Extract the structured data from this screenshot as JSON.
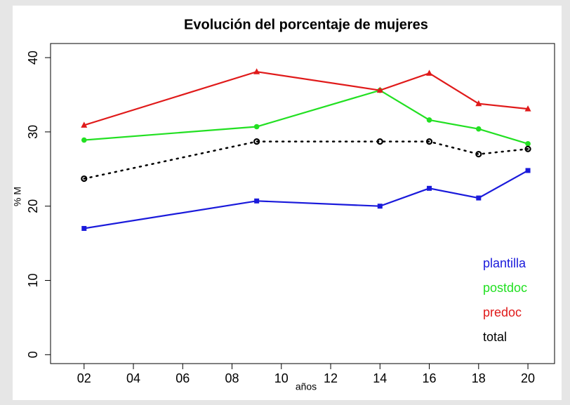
{
  "chart_data": {
    "type": "line",
    "title": "Evolución del porcentaje de mujeres",
    "x_label": "años",
    "y_label": "% M",
    "x": [
      2,
      9,
      14,
      16,
      18,
      20
    ],
    "series": [
      {
        "name": "plantilla",
        "color": "#1a1adb",
        "marker": "square",
        "linestyle": "solid",
        "values": [
          17.0,
          20.7,
          20.0,
          22.4,
          21.1,
          24.8
        ]
      },
      {
        "name": "postdoc",
        "color": "#22e022",
        "marker": "circle",
        "linestyle": "solid",
        "values": [
          28.9,
          30.7,
          35.6,
          31.6,
          30.4,
          28.4
        ]
      },
      {
        "name": "predoc",
        "color": "#e01a1a",
        "marker": "triangle",
        "linestyle": "solid",
        "values": [
          30.9,
          38.1,
          35.6,
          37.9,
          33.8,
          33.1
        ]
      },
      {
        "name": "total",
        "color": "#000000",
        "marker": "open-circle",
        "linestyle": "dotted",
        "values": [
          23.7,
          28.7,
          28.7,
          28.7,
          27.0,
          27.7
        ]
      }
    ],
    "xlim": [
      0.64,
      21.08
    ],
    "xticks": [
      {
        "value": 2,
        "label": "02"
      },
      {
        "value": 4,
        "label": "04"
      },
      {
        "value": 6,
        "label": "06"
      },
      {
        "value": 8,
        "label": "08"
      },
      10,
      12,
      14,
      16,
      18,
      20
    ],
    "ylim": [
      -1.2,
      41.9
    ],
    "yticks": [
      0,
      10,
      20,
      30,
      40
    ],
    "legend": "bottom-right",
    "grid": false
  }
}
